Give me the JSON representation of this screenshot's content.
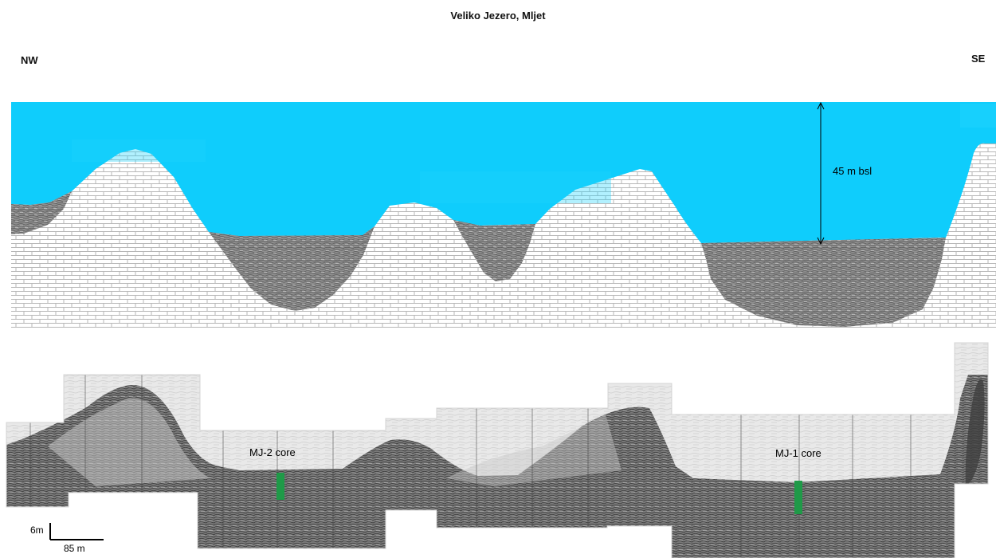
{
  "title": "Veliko Jezero, Mljet",
  "orientation": {
    "left": "NW",
    "right": "SE"
  },
  "depth_label": "45 m bsl",
  "cores": [
    {
      "label": "MJ-2 core"
    },
    {
      "label": "MJ-1 core"
    }
  ],
  "scale_bar": {
    "vertical": "6m",
    "horizontal": "85 m"
  },
  "colors": {
    "water": "#0fcdfc",
    "core_marker": "#1f9a48",
    "bedrock_line": "#b7b7b7",
    "sediment": "#9a9a9a",
    "seismic_bg": "#e7e7e7"
  }
}
